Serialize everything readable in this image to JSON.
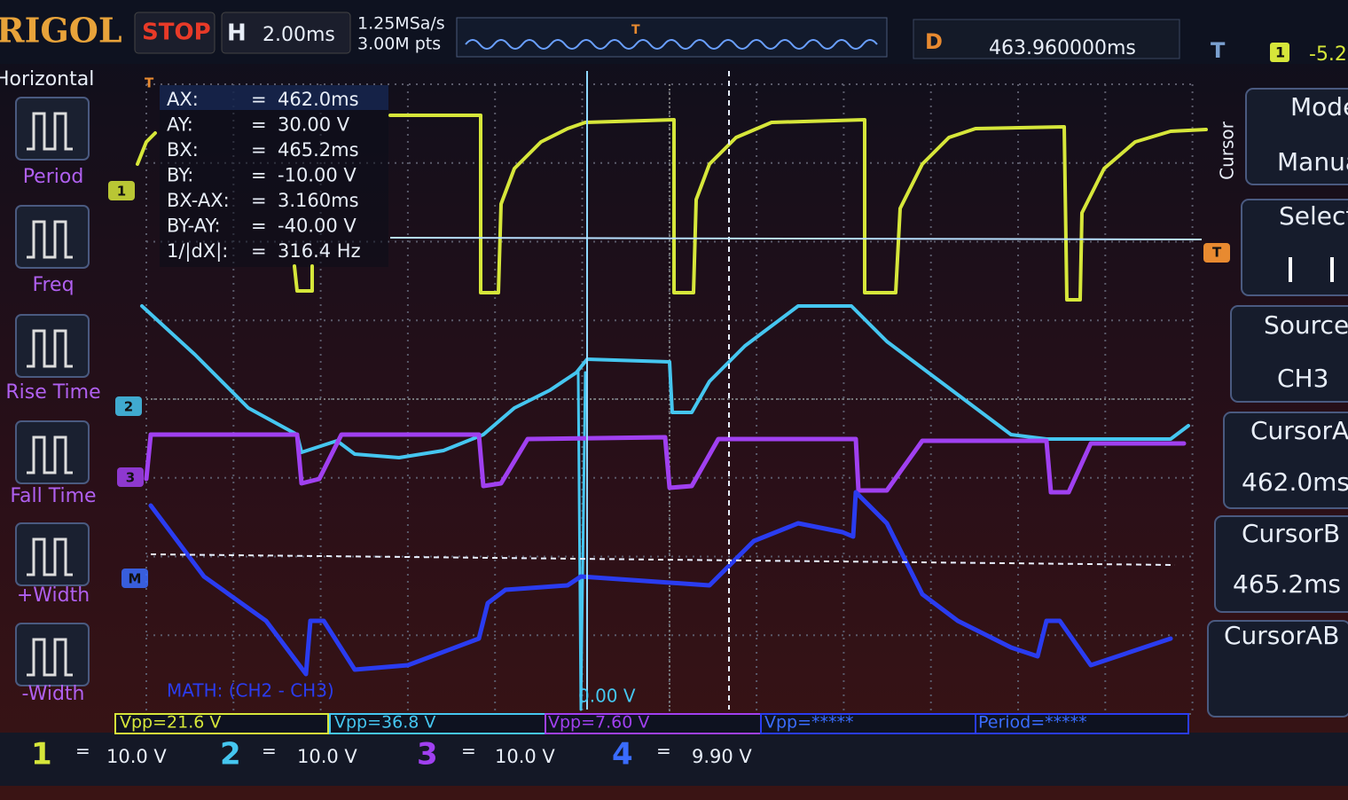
{
  "header": {
    "brand": "RIGOL",
    "run_state": "STOP",
    "timebase_label": "H",
    "timebase": "2.00ms",
    "sample_rate": "1.25MSa/s",
    "memory_depth": "3.00M pts",
    "delay_label": "D",
    "delay": "463.960000ms",
    "trigger_label": "T",
    "trigger_source": "1",
    "trigger_level": "-5.2"
  },
  "left_menu": {
    "title": "Horizontal",
    "items": [
      "Period",
      "Freq",
      "Rise Time",
      "Fall Time",
      "+Width",
      "-Width"
    ]
  },
  "cursor_readout": {
    "separator": "=",
    "rows": [
      {
        "label": "AX:",
        "value": "462.0ms"
      },
      {
        "label": "AY:",
        "value": "30.00 V"
      },
      {
        "label": "BX:",
        "value": "465.2ms"
      },
      {
        "label": "BY:",
        "value": "-10.00 V"
      },
      {
        "label": "BX-AX:",
        "value": "3.160ms"
      },
      {
        "label": "BY-AY:",
        "value": "-40.00 V"
      },
      {
        "label": "1/|dX|:",
        "value": "316.4 Hz"
      }
    ]
  },
  "right_menu": {
    "title": "Cursor",
    "items": [
      {
        "label": "Mode",
        "value": "Manual"
      },
      {
        "label": "Select"
      },
      {
        "label": "Source",
        "value": "CH3"
      },
      {
        "label": "CursorA",
        "value": "462.0ms"
      },
      {
        "label": "CursorB",
        "value": "465.2ms"
      },
      {
        "label": "CursorAB"
      }
    ]
  },
  "screen": {
    "math_label": "MATH: (CH2 - CH3)",
    "cursor_level": "0.00 V",
    "markers": [
      "1",
      "2",
      "3",
      "M"
    ],
    "trigger_marker": "T"
  },
  "measurements": [
    "Vpp=21.6 V",
    "Vpp=36.8 V",
    "Vpp=7.60 V",
    "Vpp=*****",
    "Period=*****"
  ],
  "channels": [
    {
      "number": "1",
      "coupling": "=",
      "scale": "10.0 V"
    },
    {
      "number": "2",
      "coupling": "=",
      "scale": "10.0 V"
    },
    {
      "number": "3",
      "coupling": "=",
      "scale": "10.0 V"
    },
    {
      "number": "4",
      "coupling": "=",
      "scale": "9.90 V"
    }
  ]
}
